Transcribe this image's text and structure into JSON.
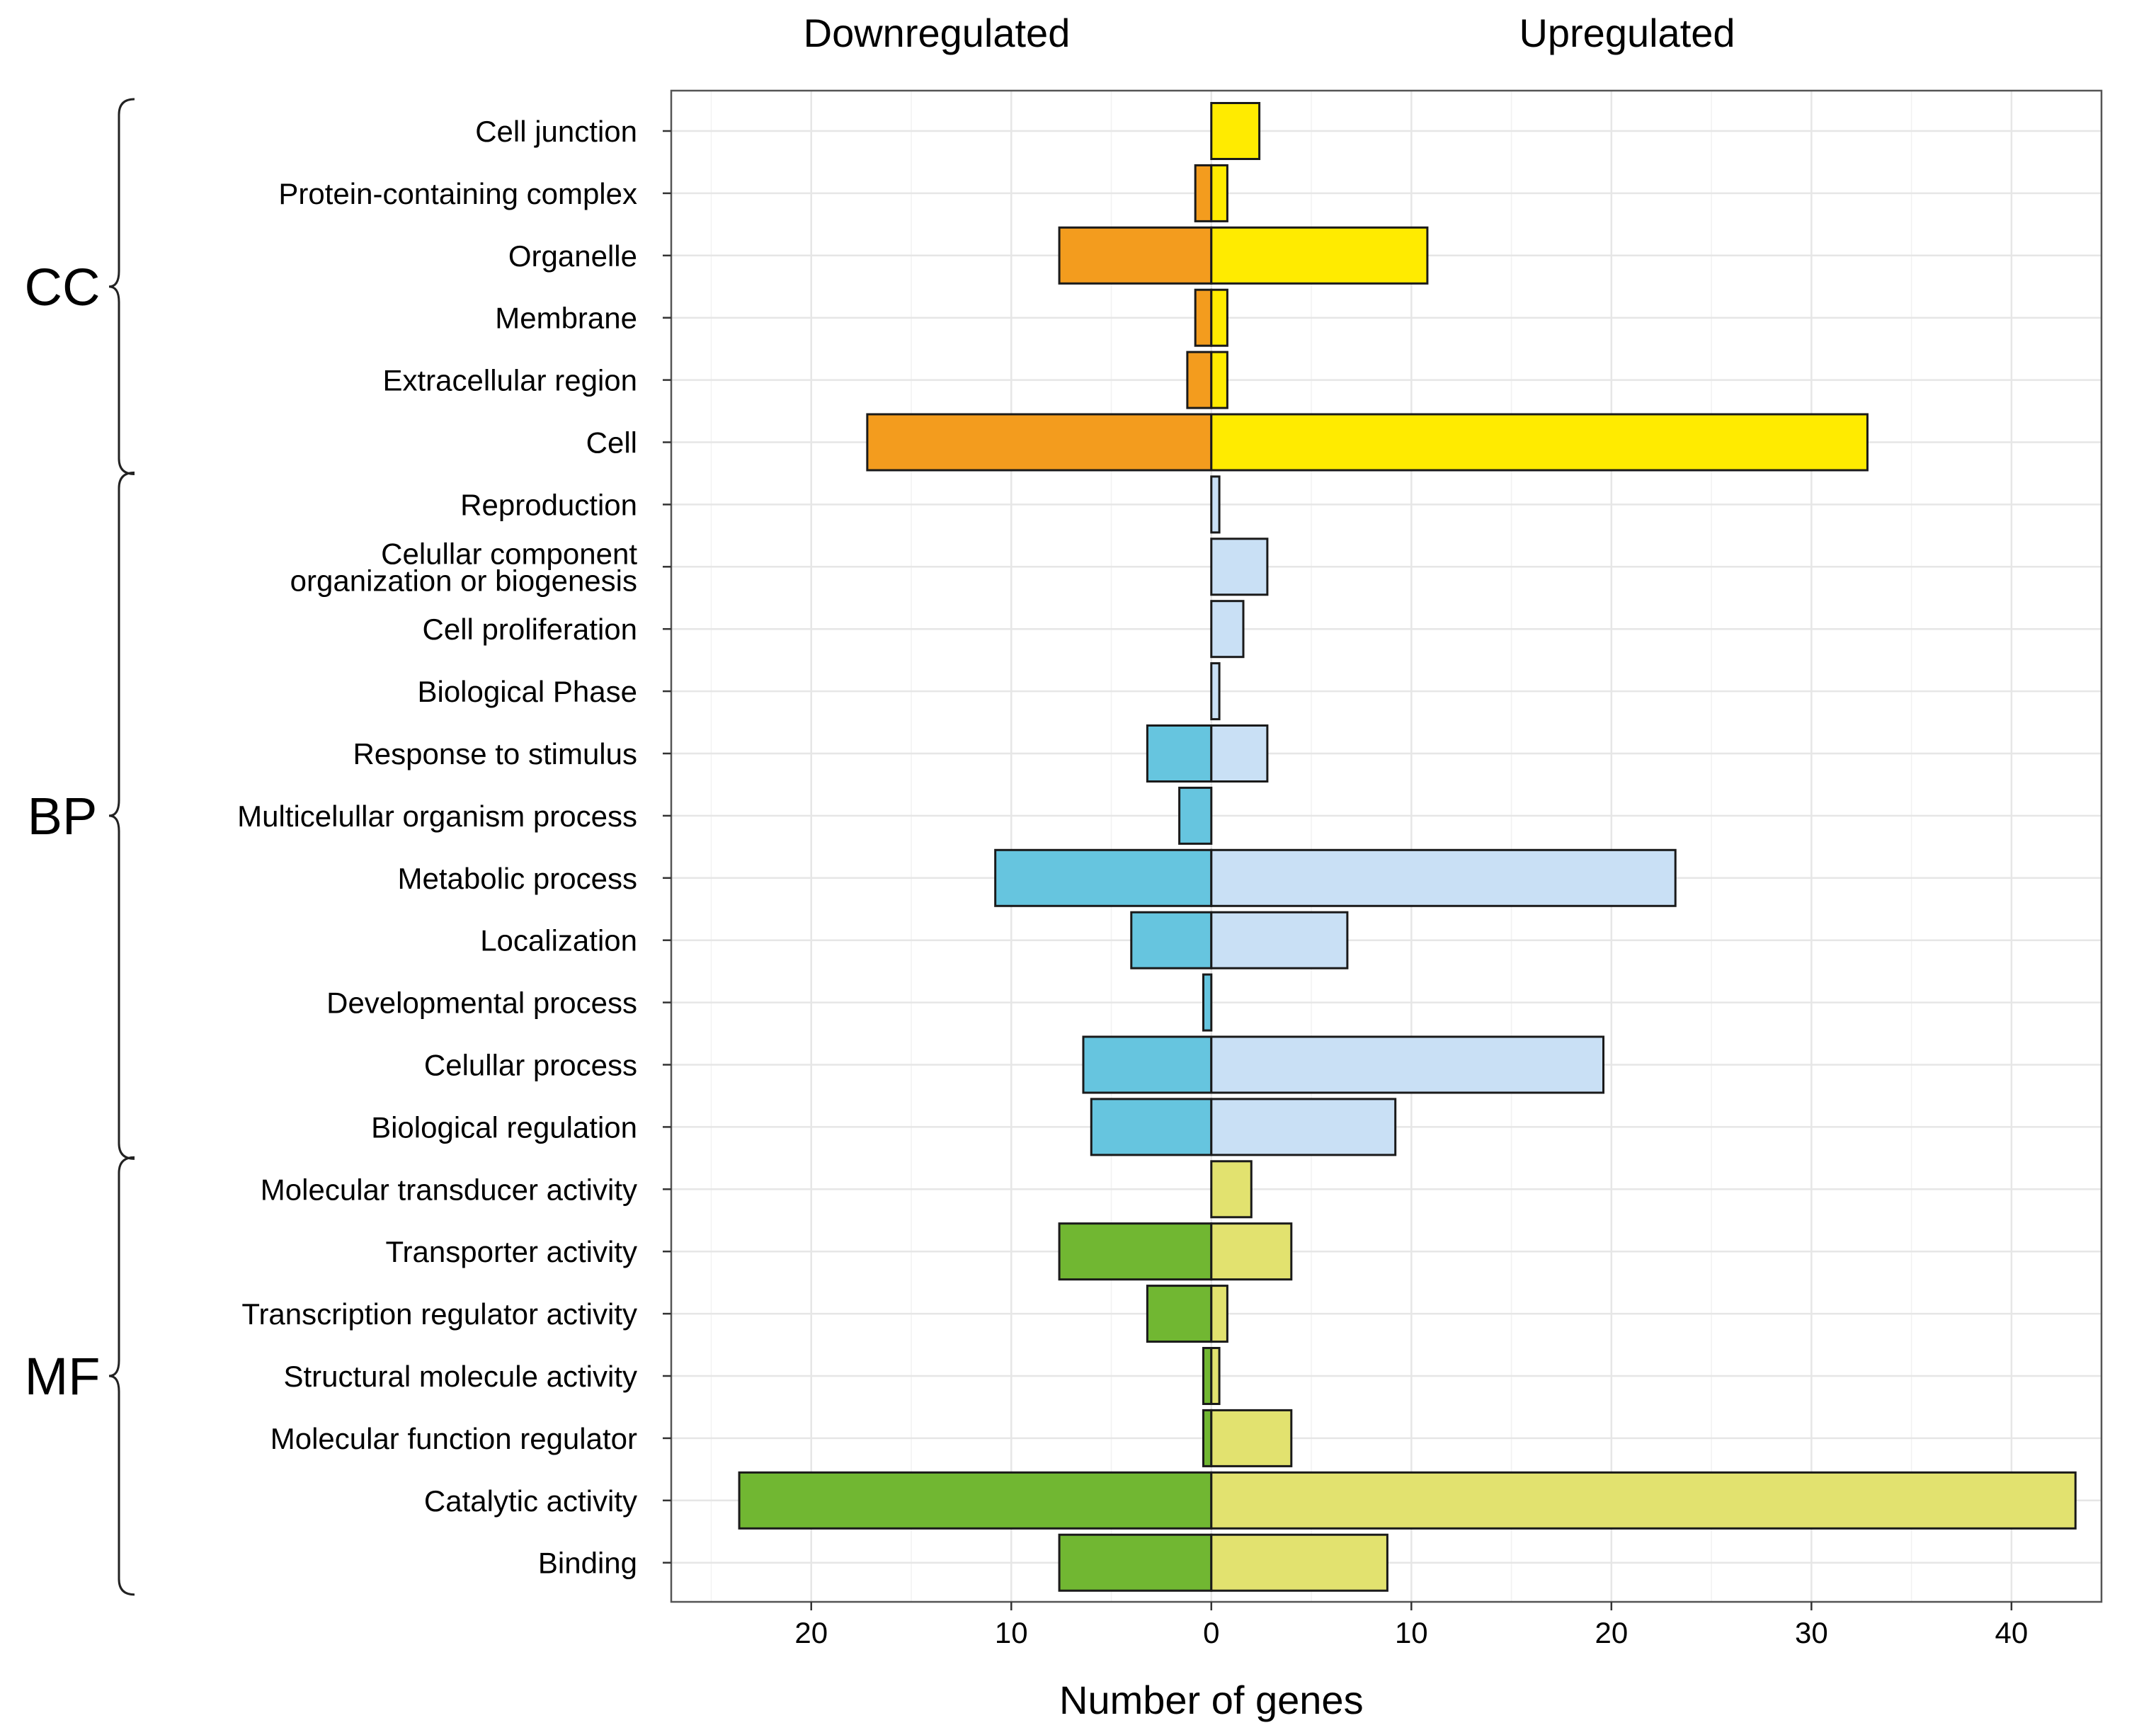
{
  "chart_data": {
    "type": "bar",
    "orientation": "horizontal-diverging",
    "xlabel": "Number of genes",
    "headers": {
      "left": "Downregulated",
      "right": "Upregulated"
    },
    "xlim": [
      -27,
      44.5
    ],
    "ticks": [
      {
        "value": -20,
        "label": "20"
      },
      {
        "value": -10,
        "label": "10"
      },
      {
        "value": 0,
        "label": "0"
      },
      {
        "value": 10,
        "label": "10"
      },
      {
        "value": 20,
        "label": "20"
      },
      {
        "value": 30,
        "label": "30"
      },
      {
        "value": 40,
        "label": "40"
      }
    ],
    "grid": true,
    "categories": [
      "Cell junction",
      "Protein-containing complex",
      "Organelle",
      "Membrane",
      "Extracellular region",
      "Cell",
      "Reproduction",
      "Celullar component\norganization or biogenesis",
      "Cell proliferation",
      "Biological Phase",
      "Response to stimulus",
      "Multicelullar organism process",
      "Metabolic process",
      "Localization",
      "Developmental process",
      "Celullar process",
      "Biological regulation",
      "Molecular transducer activity",
      "Transporter activity",
      "Transcription regulator activity",
      "Structural molecule activity",
      "Molecular function regulator",
      "Catalytic activity",
      "Binding"
    ],
    "series": [
      {
        "name": "Downregulated",
        "values": [
          0,
          0.8,
          7.6,
          0.8,
          1.2,
          17.2,
          0,
          0,
          0,
          0,
          3.2,
          1.6,
          10.8,
          4,
          0.4,
          6.4,
          6,
          0,
          7.6,
          3.2,
          0.4,
          0.4,
          23.6,
          7.6
        ]
      },
      {
        "name": "Upregulated",
        "values": [
          2.4,
          0.8,
          10.8,
          0.8,
          0.8,
          32.8,
          0.4,
          2.8,
          1.6,
          0.4,
          2.8,
          0,
          23.2,
          6.8,
          0,
          19.6,
          9.2,
          2,
          4,
          0.8,
          0.4,
          4,
          43.2,
          8.8
        ]
      }
    ],
    "groups": [
      {
        "name": "CC",
        "start": 0,
        "end": 5,
        "down_color": "#F39C1E",
        "up_color": "#FFEB00"
      },
      {
        "name": "BP",
        "start": 6,
        "end": 16,
        "down_color": "#66C5DF",
        "up_color": "#C9E0F5"
      },
      {
        "name": "MF",
        "start": 17,
        "end": 23,
        "down_color": "#71B732",
        "up_color": "#E2E26F"
      }
    ]
  }
}
